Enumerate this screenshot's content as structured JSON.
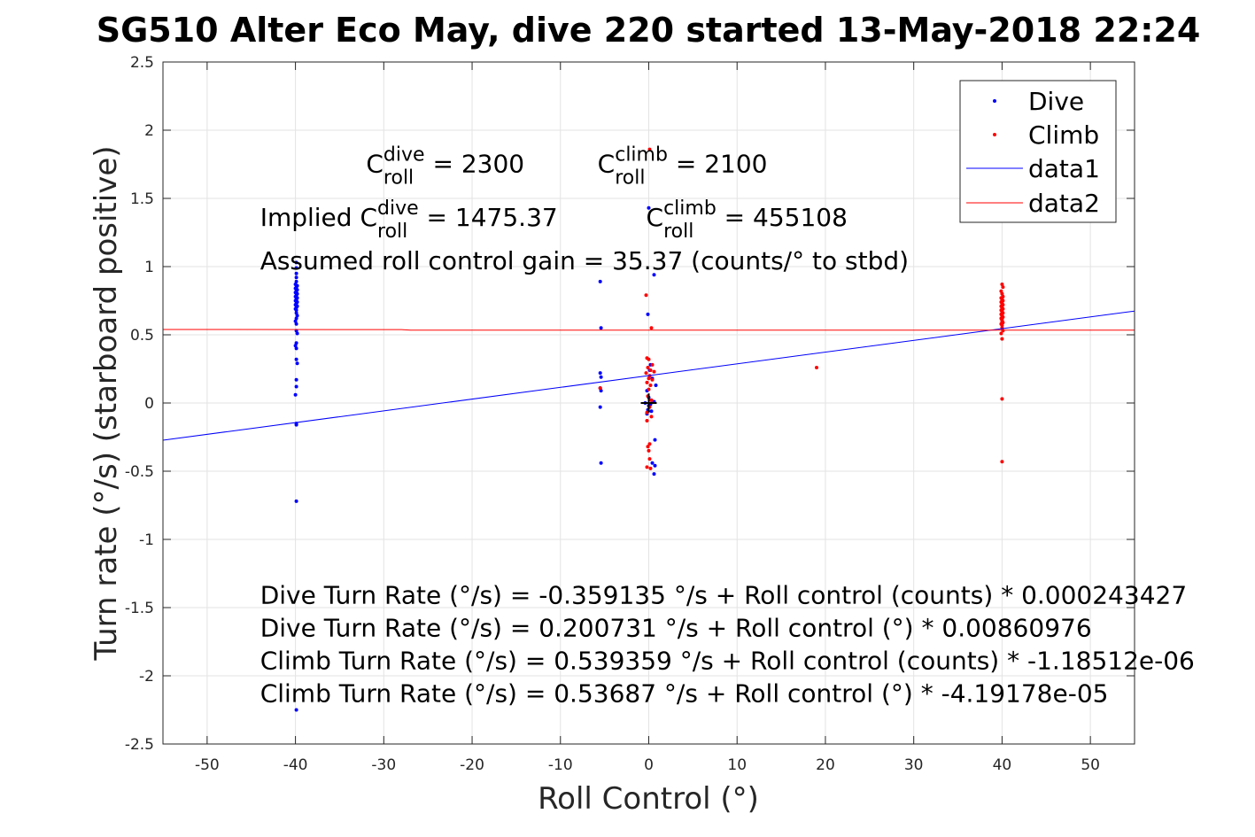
{
  "chart_data": {
    "type": "scatter",
    "title": "SG510 Alter Eco May, dive 220 started 13-May-2018 22:24",
    "xlabel": "Roll Control (°)",
    "ylabel": "Turn rate (°/s) (starboard positive)",
    "xlim": [
      -55,
      55
    ],
    "ylim": [
      -2.5,
      2.5
    ],
    "x_ticks": [
      -50,
      -40,
      -30,
      -20,
      -10,
      0,
      10,
      20,
      30,
      40,
      50
    ],
    "y_ticks": [
      -2.5,
      -2,
      -1.5,
      -1,
      -0.5,
      0,
      0.5,
      1,
      1.5,
      2,
      2.5
    ],
    "x_tick_labels": [
      "-50",
      "-40",
      "-30",
      "-20",
      "-10",
      "0",
      "10",
      "20",
      "30",
      "40",
      "50"
    ],
    "y_tick_labels": [
      "-2.5",
      "-2",
      "-1.5",
      "-1",
      "-0.5",
      "0",
      "0.5",
      "1",
      "1.5",
      "2",
      "2.5"
    ],
    "grid": true,
    "legend_position": "top-right",
    "series": [
      {
        "name": "Dive",
        "kind": "points",
        "color": "#0000ff",
        "points": [
          [
            -39.9,
            1.03
          ],
          [
            -39.9,
            0.99
          ],
          [
            -39.9,
            0.95
          ],
          [
            -39.9,
            0.92
          ],
          [
            -39.9,
            0.89
          ],
          [
            -40.0,
            0.87
          ],
          [
            -39.8,
            0.86
          ],
          [
            -39.9,
            0.85
          ],
          [
            -40.0,
            0.84
          ],
          [
            -39.8,
            0.83
          ],
          [
            -39.9,
            0.82
          ],
          [
            -40.0,
            0.81
          ],
          [
            -39.8,
            0.8
          ],
          [
            -39.9,
            0.79
          ],
          [
            -40.0,
            0.78
          ],
          [
            -39.8,
            0.77
          ],
          [
            -39.9,
            0.76
          ],
          [
            -40.0,
            0.75
          ],
          [
            -39.8,
            0.74
          ],
          [
            -39.9,
            0.73
          ],
          [
            -40.0,
            0.72
          ],
          [
            -39.8,
            0.71
          ],
          [
            -39.9,
            0.7
          ],
          [
            -40.0,
            0.69
          ],
          [
            -39.9,
            0.68
          ],
          [
            -39.9,
            0.66
          ],
          [
            -39.8,
            0.64
          ],
          [
            -39.9,
            0.62
          ],
          [
            -40.0,
            0.6
          ],
          [
            -39.9,
            0.58
          ],
          [
            -39.9,
            0.53
          ],
          [
            -39.8,
            0.51
          ],
          [
            -39.9,
            0.44
          ],
          [
            -40.0,
            0.42
          ],
          [
            -39.9,
            0.4
          ],
          [
            -39.9,
            0.32
          ],
          [
            -39.8,
            0.29
          ],
          [
            -39.9,
            0.17
          ],
          [
            -39.9,
            0.12
          ],
          [
            -40.0,
            0.06
          ],
          [
            -39.9,
            -0.15
          ],
          [
            -39.9,
            -0.16
          ],
          [
            -39.9,
            -0.72
          ],
          [
            -39.9,
            -2.25
          ],
          [
            -5.5,
            0.89
          ],
          [
            -5.4,
            0.55
          ],
          [
            -5.5,
            0.22
          ],
          [
            -5.4,
            0.19
          ],
          [
            -5.5,
            0.11
          ],
          [
            -5.4,
            0.09
          ],
          [
            -5.5,
            -0.03
          ],
          [
            -5.4,
            -0.44
          ],
          [
            0.0,
            1.43
          ],
          [
            0.6,
            0.94
          ],
          [
            -0.1,
            0.65
          ],
          [
            0.2,
            0.28
          ],
          [
            0.1,
            0.24
          ],
          [
            0.4,
            0.18
          ],
          [
            0.8,
            0.13
          ],
          [
            -0.2,
            0.09
          ],
          [
            0.0,
            0.04
          ],
          [
            0.3,
            0.02
          ],
          [
            0.6,
            0.01
          ],
          [
            -0.4,
            0.0
          ],
          [
            0.2,
            -0.01
          ],
          [
            0.0,
            -0.02
          ],
          [
            -0.1,
            -0.05
          ],
          [
            0.3,
            -0.06
          ],
          [
            -0.2,
            -0.08
          ],
          [
            0.7,
            -0.27
          ],
          [
            0.4,
            -0.44
          ],
          [
            0.7,
            -0.46
          ],
          [
            0.6,
            -0.52
          ]
        ]
      },
      {
        "name": "Climb",
        "kind": "points",
        "color": "#ff0000",
        "points": [
          [
            40.0,
            0.87
          ],
          [
            40.1,
            0.85
          ],
          [
            39.9,
            0.82
          ],
          [
            40.0,
            0.8
          ],
          [
            40.1,
            0.78
          ],
          [
            39.9,
            0.77
          ],
          [
            40.0,
            0.76
          ],
          [
            40.1,
            0.75
          ],
          [
            39.9,
            0.74
          ],
          [
            40.0,
            0.73
          ],
          [
            40.1,
            0.72
          ],
          [
            39.9,
            0.71
          ],
          [
            40.0,
            0.7
          ],
          [
            40.1,
            0.69
          ],
          [
            39.9,
            0.68
          ],
          [
            40.0,
            0.67
          ],
          [
            40.1,
            0.66
          ],
          [
            39.9,
            0.65
          ],
          [
            40.0,
            0.64
          ],
          [
            40.1,
            0.63
          ],
          [
            39.9,
            0.62
          ],
          [
            40.0,
            0.61
          ],
          [
            40.0,
            0.6
          ],
          [
            40.1,
            0.59
          ],
          [
            39.9,
            0.58
          ],
          [
            40.0,
            0.57
          ],
          [
            40.0,
            0.55
          ],
          [
            40.1,
            0.53
          ],
          [
            39.9,
            0.51
          ],
          [
            40.0,
            0.47
          ],
          [
            40.0,
            0.03
          ],
          [
            40.0,
            -0.43
          ],
          [
            -5.5,
            0.11
          ],
          [
            19.0,
            0.26
          ],
          [
            0.1,
            1.86
          ],
          [
            -0.3,
            0.79
          ],
          [
            0.3,
            0.55
          ],
          [
            -0.2,
            0.33
          ],
          [
            0.0,
            0.32
          ],
          [
            0.4,
            0.28
          ],
          [
            -0.1,
            0.26
          ],
          [
            0.2,
            0.24
          ],
          [
            0.6,
            0.23
          ],
          [
            -0.3,
            0.22
          ],
          [
            0.1,
            0.2
          ],
          [
            0.0,
            0.18
          ],
          [
            0.4,
            0.17
          ],
          [
            -0.2,
            0.15
          ],
          [
            0.2,
            0.13
          ],
          [
            0.0,
            0.1
          ],
          [
            -0.1,
            0.05
          ],
          [
            0.3,
            0.02
          ],
          [
            0.1,
            -0.03
          ],
          [
            -0.2,
            -0.07
          ],
          [
            0.3,
            -0.1
          ],
          [
            -0.2,
            -0.13
          ],
          [
            0.1,
            -0.3
          ],
          [
            -0.1,
            -0.32
          ],
          [
            0.0,
            -0.35
          ],
          [
            0.1,
            -0.41
          ],
          [
            -0.2,
            -0.47
          ],
          [
            0.2,
            -0.48
          ]
        ]
      },
      {
        "name": "data1",
        "kind": "line",
        "color": "#0000ff",
        "points": [
          [
            -55,
            -0.273
          ],
          [
            55,
            0.674
          ]
        ]
      },
      {
        "name": "data2",
        "kind": "line",
        "color": "#ff0000",
        "points": [
          [
            -55,
            0.539
          ],
          [
            -28,
            0.538
          ],
          [
            -27,
            0.534
          ],
          [
            55,
            0.534
          ]
        ]
      }
    ],
    "crosshair": {
      "x": 0,
      "y": 0,
      "half_width_x": 0.9,
      "half_height_y": 0.07,
      "color": "#000000"
    },
    "annotations": [
      {
        "id": "c-dive",
        "anchor": [
          -32,
          1.69
        ],
        "parts": [
          {
            "t": "C"
          },
          {
            "t": "dive",
            "sup": true
          },
          {
            "t": "roll",
            "sub": true
          },
          {
            "t": " = 2300"
          }
        ]
      },
      {
        "id": "c-climb",
        "anchor": [
          -5.8,
          1.69
        ],
        "parts": [
          {
            "t": "C"
          },
          {
            "t": "climb",
            "sup": true
          },
          {
            "t": "roll",
            "sub": true
          },
          {
            "t": " = 2100"
          }
        ]
      },
      {
        "id": "implied-dive",
        "anchor": [
          -44,
          1.3
        ],
        "parts": [
          {
            "t": "Implied C"
          },
          {
            "t": "dive",
            "sup": true
          },
          {
            "t": "roll",
            "sub": true
          },
          {
            "t": " = 1475.37"
          }
        ]
      },
      {
        "id": "implied-climb",
        "anchor": [
          -0.3,
          1.3
        ],
        "parts": [
          {
            "t": "C"
          },
          {
            "t": "climb",
            "sup": true
          },
          {
            "t": "roll",
            "sub": true
          },
          {
            "t": " = 455108"
          }
        ]
      },
      {
        "id": "gain",
        "anchor": [
          -44,
          0.98
        ],
        "parts": [
          {
            "t": "Assumed roll control gain = 35.37 (counts/° to stbd)"
          }
        ]
      },
      {
        "id": "eq1",
        "anchor": [
          -44,
          -1.47
        ],
        "parts": [
          {
            "t": "Dive Turn Rate (°/s) = -0.359135 °/s + Roll control (counts) * 0.000243427"
          }
        ]
      },
      {
        "id": "eq2",
        "anchor": [
          -44,
          -1.71
        ],
        "parts": [
          {
            "t": "Dive Turn Rate (°/s) = 0.200731 °/s + Roll control (°) * 0.00860976"
          }
        ]
      },
      {
        "id": "eq3",
        "anchor": [
          -44,
          -1.95
        ],
        "parts": [
          {
            "t": "Climb Turn Rate (°/s) = 0.539359 °/s + Roll control (counts) * -1.18512e-06"
          }
        ]
      },
      {
        "id": "eq4",
        "anchor": [
          -44,
          -2.19
        ],
        "parts": [
          {
            "t": "Climb Turn Rate (°/s) = 0.53687 °/s + Roll control (°) * -4.19178e-05"
          }
        ]
      }
    ]
  }
}
